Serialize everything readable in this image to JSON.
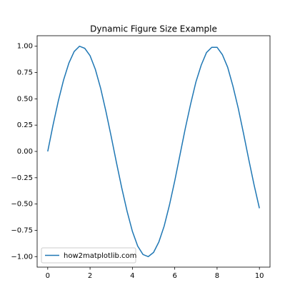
{
  "chart_data": {
    "type": "line",
    "title": "Dynamic Figure Size Example",
    "x": [
      0,
      0.25,
      0.5,
      0.75,
      1,
      1.25,
      1.5,
      1.75,
      2,
      2.25,
      2.5,
      2.75,
      3,
      3.25,
      3.5,
      3.75,
      4,
      4.25,
      4.5,
      4.75,
      5,
      5.25,
      5.5,
      5.75,
      6,
      6.25,
      6.5,
      6.75,
      7,
      7.25,
      7.5,
      7.75,
      8,
      8.25,
      8.5,
      8.75,
      9,
      9.25,
      9.5,
      9.75,
      10
    ],
    "series": [
      {
        "name": "how2matplotlib.com",
        "color": "#1f77b4",
        "values": [
          0,
          0.25,
          0.48,
          0.68,
          0.84,
          0.95,
          1.0,
          0.98,
          0.91,
          0.78,
          0.6,
          0.38,
          0.14,
          -0.11,
          -0.35,
          -0.57,
          -0.76,
          -0.9,
          -0.98,
          -1.0,
          -0.96,
          -0.86,
          -0.71,
          -0.51,
          -0.28,
          -0.03,
          0.22,
          0.45,
          0.66,
          0.82,
          0.94,
          0.99,
          0.99,
          0.92,
          0.8,
          0.62,
          0.41,
          0.17,
          -0.08,
          -0.32,
          -0.54
        ]
      }
    ],
    "xlim": [
      -0.5,
      10.5
    ],
    "xticks": [
      0,
      2,
      4,
      6,
      8,
      10
    ],
    "ylim": [
      -1.1,
      1.1
    ],
    "yticks": [
      {
        "value": -1,
        "label": "−1.00"
      },
      {
        "value": -0.75,
        "label": "−0.75"
      },
      {
        "value": -0.5,
        "label": "−0.50"
      },
      {
        "value": -0.25,
        "label": "−0.25"
      },
      {
        "value": 0,
        "label": "0.00"
      },
      {
        "value": 0.25,
        "label": "0.25"
      },
      {
        "value": 0.5,
        "label": "0.50"
      },
      {
        "value": 0.75,
        "label": "0.75"
      },
      {
        "value": 1,
        "label": "1.00"
      }
    ],
    "grid": false,
    "legend": "lower left"
  }
}
